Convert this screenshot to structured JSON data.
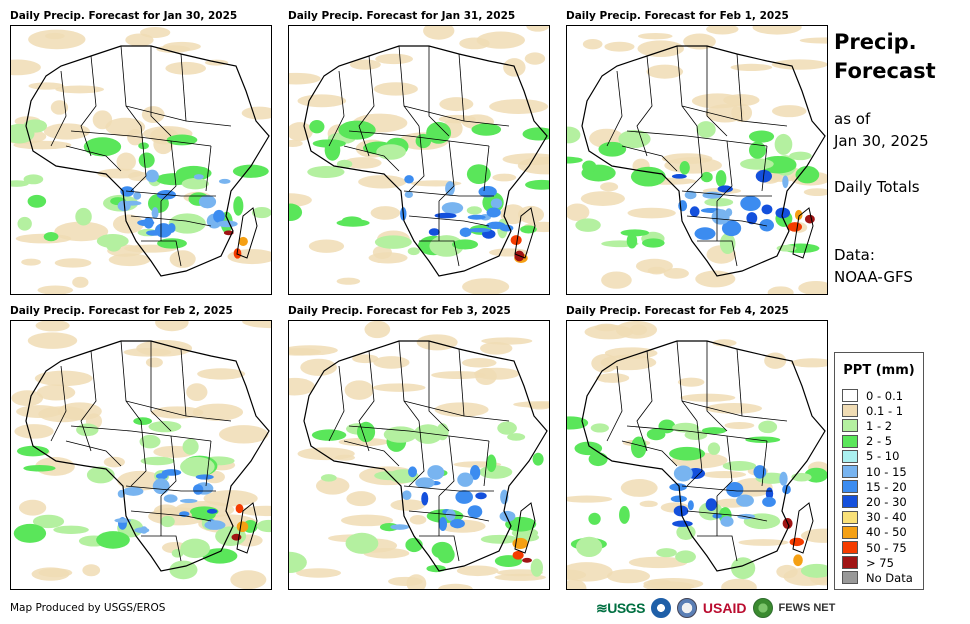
{
  "panels": [
    {
      "title": "Daily Precip. Forecast for Jan 30, 2025"
    },
    {
      "title": "Daily Precip. Forecast for Jan 31, 2025"
    },
    {
      "title": "Daily Precip. Forecast for Feb 1, 2025"
    },
    {
      "title": "Daily Precip. Forecast for Feb 2, 2025"
    },
    {
      "title": "Daily Precip. Forecast for Feb 3, 2025"
    },
    {
      "title": "Daily Precip. Forecast for Feb 4, 2025"
    }
  ],
  "side": {
    "title_line1": "Precip.",
    "title_line2": "Forecast",
    "asof_line1": "as of",
    "asof_line2": "Jan 30, 2025",
    "daily_totals": "Daily Totals",
    "data_label": "Data:",
    "data_source": "NOAA-GFS"
  },
  "legend": {
    "title": "PPT (mm)",
    "items": [
      {
        "label": "0 - 0.1",
        "color": "#ffffff"
      },
      {
        "label": "0.1 - 1",
        "color": "#f0dcb4"
      },
      {
        "label": "1 - 2",
        "color": "#b4f0a0"
      },
      {
        "label": "2 - 5",
        "color": "#5ae65a"
      },
      {
        "label": "5 - 10",
        "color": "#aaf0f0"
      },
      {
        "label": "10 - 15",
        "color": "#78b4f0"
      },
      {
        "label": "15 - 20",
        "color": "#3c8cf0"
      },
      {
        "label": "20 - 30",
        "color": "#1450dc"
      },
      {
        "label": "30 - 40",
        "color": "#fae178"
      },
      {
        "label": "40 - 50",
        "color": "#f5a014"
      },
      {
        "label": "50 - 75",
        "color": "#f53c00"
      },
      {
        "label": "> 75",
        "color": "#a01414"
      },
      {
        "label": "No Data",
        "color": "#999999"
      }
    ]
  },
  "footer": {
    "credit": "Map Produced by USGS/EROS",
    "usgs": "USGS",
    "usaid_us": "US",
    "usaid_aid": "AID",
    "fews": "FEWS NET"
  }
}
